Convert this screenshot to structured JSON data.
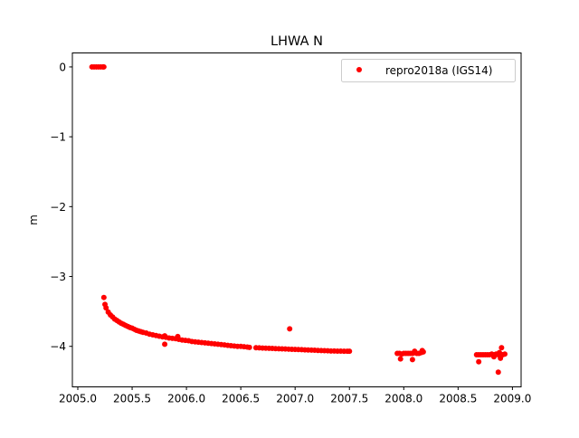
{
  "chart_data": {
    "type": "scatter",
    "title": "LHWA N",
    "xlabel": "",
    "ylabel": "m",
    "xlim": [
      2004.95,
      2009.08
    ],
    "ylim": [
      -4.58,
      0.2
    ],
    "xticks": [
      2005.0,
      2005.5,
      2006.0,
      2006.5,
      2007.0,
      2007.5,
      2008.0,
      2008.5,
      2009.0
    ],
    "xtick_labels": [
      "2005.0",
      "2005.5",
      "2006.0",
      "2006.5",
      "2007.0",
      "2007.5",
      "2008.0",
      "2008.5",
      "2009.0"
    ],
    "yticks": [
      0,
      -1,
      -2,
      -3,
      -4
    ],
    "ytick_labels": [
      "0",
      "−1",
      "−2",
      "−3",
      "−4"
    ],
    "grid": false,
    "legend": {
      "placement": "top-right",
      "entries": [
        "repro2018a (IGS14)"
      ]
    },
    "series": [
      {
        "name": "repro2018a (IGS14)",
        "color": "#ff0000",
        "points": [
          [
            2005.13,
            0
          ],
          [
            2005.15,
            0
          ],
          [
            2005.17,
            0
          ],
          [
            2005.19,
            0
          ],
          [
            2005.21,
            0
          ],
          [
            2005.23,
            0
          ],
          [
            2005.24,
            0
          ],
          [
            2005.24,
            -3.3
          ],
          [
            2005.25,
            -3.4
          ],
          [
            2005.26,
            -3.45
          ],
          [
            2005.28,
            -3.51
          ],
          [
            2005.3,
            -3.55
          ],
          [
            2005.32,
            -3.58
          ],
          [
            2005.34,
            -3.61
          ],
          [
            2005.36,
            -3.63
          ],
          [
            2005.38,
            -3.65
          ],
          [
            2005.4,
            -3.67
          ],
          [
            2005.42,
            -3.685
          ],
          [
            2005.44,
            -3.7
          ],
          [
            2005.46,
            -3.715
          ],
          [
            2005.48,
            -3.73
          ],
          [
            2005.5,
            -3.74
          ],
          [
            2005.52,
            -3.755
          ],
          [
            2005.54,
            -3.77
          ],
          [
            2005.56,
            -3.78
          ],
          [
            2005.58,
            -3.79
          ],
          [
            2005.6,
            -3.8
          ],
          [
            2005.63,
            -3.81
          ],
          [
            2005.66,
            -3.825
          ],
          [
            2005.69,
            -3.835
          ],
          [
            2005.72,
            -3.845
          ],
          [
            2005.75,
            -3.855
          ],
          [
            2005.78,
            -3.865
          ],
          [
            2005.81,
            -3.87
          ],
          [
            2005.84,
            -3.88
          ],
          [
            2005.87,
            -3.885
          ],
          [
            2005.9,
            -3.89
          ],
          [
            2005.93,
            -3.9
          ],
          [
            2005.96,
            -3.91
          ],
          [
            2005.99,
            -3.915
          ],
          [
            2006.02,
            -3.92
          ],
          [
            2006.05,
            -3.93
          ],
          [
            2006.08,
            -3.935
          ],
          [
            2006.11,
            -3.94
          ],
          [
            2006.14,
            -3.945
          ],
          [
            2006.17,
            -3.95
          ],
          [
            2006.2,
            -3.955
          ],
          [
            2006.23,
            -3.96
          ],
          [
            2006.26,
            -3.965
          ],
          [
            2006.29,
            -3.97
          ],
          [
            2006.32,
            -3.975
          ],
          [
            2006.35,
            -3.98
          ],
          [
            2006.38,
            -3.985
          ],
          [
            2006.41,
            -3.99
          ],
          [
            2006.44,
            -3.995
          ],
          [
            2006.47,
            -4.0
          ],
          [
            2006.5,
            -4.0
          ],
          [
            2006.53,
            -4.005
          ],
          [
            2006.56,
            -4.01
          ],
          [
            2006.58,
            -4.015
          ],
          [
            2005.8,
            -3.97
          ],
          [
            2005.8,
            -3.85
          ],
          [
            2005.92,
            -3.86
          ],
          [
            2006.64,
            -4.02
          ],
          [
            2006.67,
            -4.022
          ],
          [
            2006.7,
            -4.024
          ],
          [
            2006.73,
            -4.026
          ],
          [
            2006.76,
            -4.028
          ],
          [
            2006.79,
            -4.03
          ],
          [
            2006.82,
            -4.032
          ],
          [
            2006.85,
            -4.034
          ],
          [
            2006.88,
            -4.036
          ],
          [
            2006.91,
            -4.038
          ],
          [
            2006.94,
            -4.04
          ],
          [
            2006.97,
            -4.042
          ],
          [
            2007.0,
            -4.044
          ],
          [
            2007.03,
            -4.046
          ],
          [
            2007.06,
            -4.048
          ],
          [
            2007.09,
            -4.05
          ],
          [
            2007.12,
            -4.052
          ],
          [
            2007.15,
            -4.054
          ],
          [
            2007.18,
            -4.056
          ],
          [
            2007.21,
            -4.058
          ],
          [
            2007.24,
            -4.06
          ],
          [
            2007.27,
            -4.062
          ],
          [
            2007.3,
            -4.064
          ],
          [
            2007.33,
            -4.066
          ],
          [
            2007.36,
            -4.067
          ],
          [
            2007.39,
            -4.068
          ],
          [
            2007.42,
            -4.069
          ],
          [
            2007.45,
            -4.07
          ],
          [
            2007.48,
            -4.07
          ],
          [
            2007.5,
            -4.07
          ],
          [
            2006.95,
            -3.75
          ],
          [
            2007.94,
            -4.1
          ],
          [
            2007.96,
            -4.1
          ],
          [
            2007.98,
            -4.11
          ],
          [
            2008.0,
            -4.1
          ],
          [
            2008.02,
            -4.1
          ],
          [
            2008.04,
            -4.1
          ],
          [
            2008.06,
            -4.1
          ],
          [
            2008.08,
            -4.1
          ],
          [
            2008.1,
            -4.09
          ],
          [
            2008.12,
            -4.1
          ],
          [
            2008.14,
            -4.1
          ],
          [
            2008.16,
            -4.09
          ],
          [
            2008.18,
            -4.08
          ],
          [
            2007.97,
            -4.18
          ],
          [
            2008.08,
            -4.19
          ],
          [
            2008.1,
            -4.07
          ],
          [
            2008.17,
            -4.06
          ],
          [
            2008.67,
            -4.12
          ],
          [
            2008.69,
            -4.12
          ],
          [
            2008.71,
            -4.12
          ],
          [
            2008.73,
            -4.12
          ],
          [
            2008.75,
            -4.12
          ],
          [
            2008.77,
            -4.12
          ],
          [
            2008.79,
            -4.12
          ],
          [
            2008.81,
            -4.11
          ],
          [
            2008.83,
            -4.12
          ],
          [
            2008.85,
            -4.11
          ],
          [
            2008.87,
            -4.12
          ],
          [
            2008.89,
            -4.11
          ],
          [
            2008.91,
            -4.12
          ],
          [
            2008.93,
            -4.11
          ],
          [
            2008.69,
            -4.22
          ],
          [
            2008.87,
            -4.37
          ],
          [
            2008.9,
            -4.02
          ],
          [
            2008.83,
            -4.15
          ],
          [
            2008.89,
            -4.17
          ],
          [
            2008.88,
            -4.09
          ]
        ]
      }
    ]
  }
}
